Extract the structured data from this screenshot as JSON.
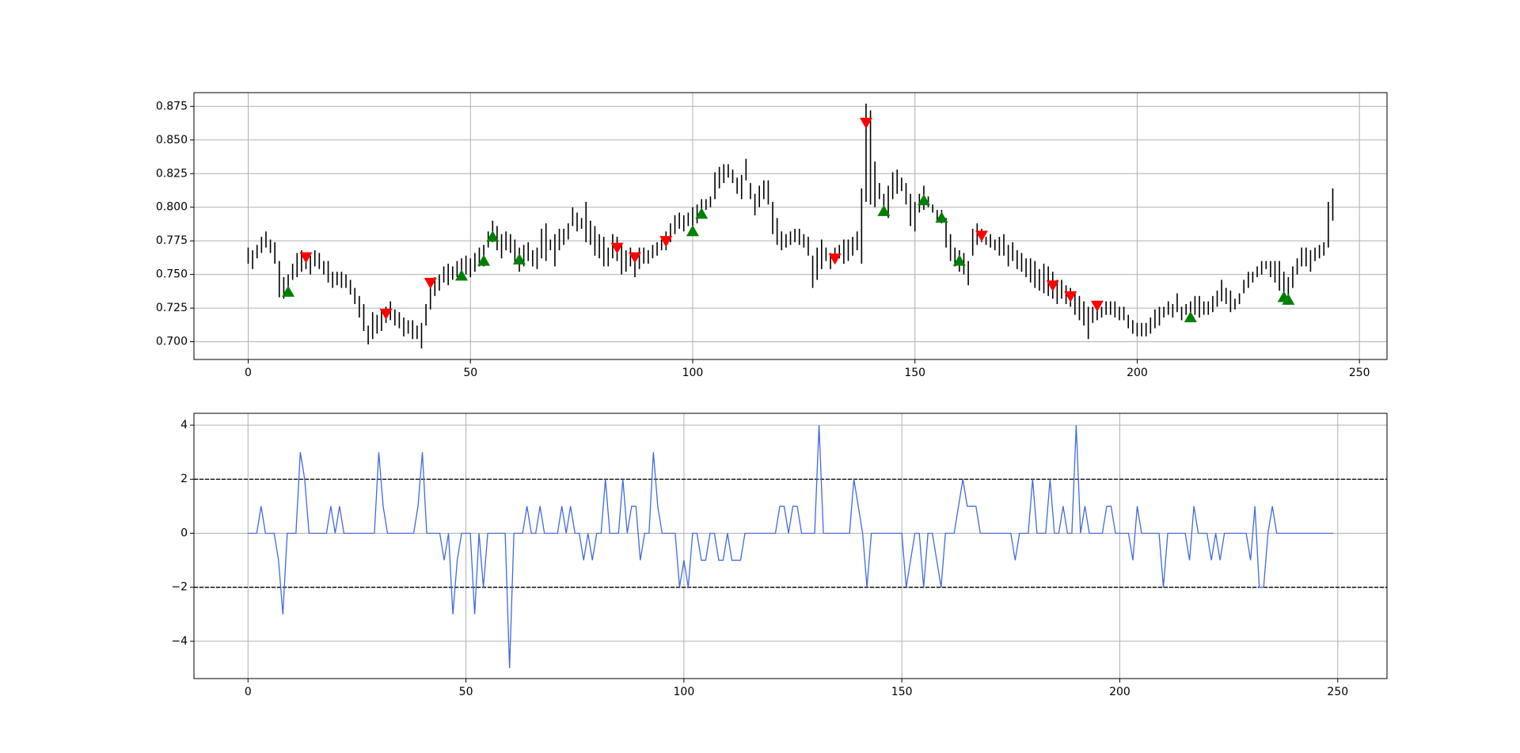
{
  "chart_data": [
    {
      "type": "ohlc",
      "color": "#000000",
      "grid": true,
      "xlim": [
        -12.2,
        256.2
      ],
      "ylim": [
        0.6868,
        0.8852
      ],
      "xticks": [
        0,
        50,
        100,
        150,
        200,
        250
      ],
      "yticks": [
        {
          "value": 0.7,
          "label": "0.700"
        },
        0.725,
        {
          "value": 0.75,
          "label": "0.750"
        },
        0.775,
        {
          "value": 0.8,
          "label": "0.800"
        },
        0.825,
        {
          "value": 0.85,
          "label": "0.850"
        },
        0.875
      ],
      "low": [
        0.758,
        0.754,
        0.762,
        0.766,
        0.77,
        0.766,
        0.758,
        0.733,
        0.732,
        0.734,
        0.746,
        0.748,
        0.752,
        0.754,
        0.75,
        0.756,
        0.754,
        0.75,
        0.744,
        0.74,
        0.742,
        0.74,
        0.74,
        0.735,
        0.728,
        0.718,
        0.708,
        0.698,
        0.702,
        0.706,
        0.708,
        0.714,
        0.716,
        0.712,
        0.71,
        0.704,
        0.706,
        0.702,
        0.702,
        0.695,
        0.712,
        0.724,
        0.734,
        0.738,
        0.744,
        0.742,
        0.746,
        0.748,
        0.746,
        0.75,
        0.748,
        0.752,
        0.756,
        0.756,
        0.77,
        0.774,
        0.768,
        0.762,
        0.768,
        0.766,
        0.758,
        0.752,
        0.756,
        0.76,
        0.756,
        0.754,
        0.762,
        0.76,
        0.768,
        0.756,
        0.768,
        0.772,
        0.776,
        0.786,
        0.782,
        0.784,
        0.774,
        0.772,
        0.764,
        0.762,
        0.756,
        0.756,
        0.762,
        0.76,
        0.75,
        0.752,
        0.756,
        0.748,
        0.754,
        0.758,
        0.758,
        0.762,
        0.764,
        0.768,
        0.768,
        0.774,
        0.78,
        0.784,
        0.782,
        0.786,
        0.786,
        0.788,
        0.792,
        0.798,
        0.8,
        0.806,
        0.814,
        0.818,
        0.822,
        0.818,
        0.81,
        0.806,
        0.82,
        0.806,
        0.794,
        0.8,
        0.806,
        0.802,
        0.78,
        0.772,
        0.768,
        0.77,
        0.772,
        0.774,
        0.772,
        0.77,
        0.764,
        0.74,
        0.746,
        0.754,
        0.76,
        0.754,
        0.758,
        0.762,
        0.758,
        0.76,
        0.764,
        0.768,
        0.758,
        0.804,
        0.802,
        0.8,
        0.806,
        0.798,
        0.792,
        0.806,
        0.81,
        0.812,
        0.802,
        0.786,
        0.782,
        0.796,
        0.798,
        0.8,
        0.796,
        0.79,
        0.788,
        0.77,
        0.76,
        0.756,
        0.752,
        0.75,
        0.742,
        0.764,
        0.772,
        0.774,
        0.772,
        0.77,
        0.768,
        0.764,
        0.764,
        0.756,
        0.76,
        0.754,
        0.752,
        0.748,
        0.744,
        0.74,
        0.738,
        0.736,
        0.734,
        0.732,
        0.728,
        0.732,
        0.728,
        0.726,
        0.72,
        0.716,
        0.712,
        0.702,
        0.714,
        0.716,
        0.718,
        0.72,
        0.72,
        0.718,
        0.716,
        0.716,
        0.71,
        0.706,
        0.704,
        0.704,
        0.704,
        0.706,
        0.71,
        0.712,
        0.718,
        0.72,
        0.718,
        0.722,
        0.716,
        0.72,
        0.722,
        0.72,
        0.718,
        0.72,
        0.72,
        0.722,
        0.726,
        0.73,
        0.728,
        0.722,
        0.724,
        0.728,
        0.736,
        0.74,
        0.744,
        0.748,
        0.75,
        0.754,
        0.748,
        0.744,
        0.738,
        0.736,
        0.734,
        0.74,
        0.75,
        0.756,
        0.756,
        0.752,
        0.76,
        0.762,
        0.764,
        0.77,
        0.79
      ],
      "high": [
        0.77,
        0.768,
        0.772,
        0.778,
        0.782,
        0.776,
        0.774,
        0.76,
        0.748,
        0.75,
        0.758,
        0.766,
        0.768,
        0.766,
        0.764,
        0.768,
        0.766,
        0.76,
        0.76,
        0.752,
        0.752,
        0.752,
        0.75,
        0.746,
        0.74,
        0.734,
        0.728,
        0.712,
        0.722,
        0.72,
        0.724,
        0.726,
        0.73,
        0.724,
        0.722,
        0.718,
        0.716,
        0.716,
        0.712,
        0.714,
        0.728,
        0.74,
        0.748,
        0.75,
        0.756,
        0.758,
        0.756,
        0.76,
        0.762,
        0.764,
        0.762,
        0.766,
        0.77,
        0.772,
        0.782,
        0.79,
        0.786,
        0.78,
        0.782,
        0.78,
        0.776,
        0.77,
        0.772,
        0.774,
        0.768,
        0.77,
        0.784,
        0.788,
        0.776,
        0.78,
        0.784,
        0.784,
        0.788,
        0.8,
        0.796,
        0.792,
        0.804,
        0.79,
        0.786,
        0.78,
        0.778,
        0.77,
        0.78,
        0.778,
        0.772,
        0.768,
        0.77,
        0.764,
        0.77,
        0.77,
        0.768,
        0.772,
        0.774,
        0.776,
        0.782,
        0.788,
        0.794,
        0.796,
        0.794,
        0.796,
        0.8,
        0.802,
        0.806,
        0.806,
        0.808,
        0.826,
        0.83,
        0.832,
        0.832,
        0.828,
        0.822,
        0.824,
        0.836,
        0.818,
        0.81,
        0.816,
        0.82,
        0.82,
        0.804,
        0.792,
        0.782,
        0.78,
        0.782,
        0.784,
        0.784,
        0.78,
        0.778,
        0.764,
        0.77,
        0.776,
        0.77,
        0.766,
        0.77,
        0.772,
        0.776,
        0.776,
        0.778,
        0.782,
        0.814,
        0.877,
        0.872,
        0.834,
        0.818,
        0.81,
        0.816,
        0.826,
        0.828,
        0.822,
        0.818,
        0.81,
        0.804,
        0.81,
        0.816,
        0.808,
        0.802,
        0.798,
        0.798,
        0.792,
        0.78,
        0.77,
        0.768,
        0.766,
        0.76,
        0.784,
        0.788,
        0.784,
        0.778,
        0.78,
        0.776,
        0.778,
        0.78,
        0.772,
        0.774,
        0.768,
        0.766,
        0.762,
        0.762,
        0.76,
        0.754,
        0.758,
        0.756,
        0.752,
        0.746,
        0.746,
        0.742,
        0.74,
        0.736,
        0.734,
        0.73,
        0.726,
        0.726,
        0.726,
        0.726,
        0.73,
        0.73,
        0.73,
        0.726,
        0.726,
        0.72,
        0.716,
        0.714,
        0.714,
        0.714,
        0.718,
        0.724,
        0.726,
        0.726,
        0.73,
        0.728,
        0.736,
        0.726,
        0.728,
        0.73,
        0.734,
        0.734,
        0.73,
        0.73,
        0.734,
        0.738,
        0.746,
        0.74,
        0.738,
        0.732,
        0.736,
        0.746,
        0.752,
        0.752,
        0.756,
        0.76,
        0.76,
        0.76,
        0.76,
        0.76,
        0.752,
        0.748,
        0.756,
        0.762,
        0.77,
        0.77,
        0.768,
        0.77,
        0.772,
        0.774,
        0.804,
        0.814
      ],
      "signals": [
        {
          "marker": "up",
          "color": "#008000",
          "x": [
            9,
            48,
            53,
            55,
            61,
            100,
            102,
            143,
            152,
            156,
            160,
            212,
            233,
            234
          ],
          "values": [
            0.737,
            0.749,
            0.76,
            0.778,
            0.761,
            0.782,
            0.795,
            0.797,
            0.805,
            0.792,
            0.76,
            0.718,
            0.733,
            0.731
          ]
        },
        {
          "marker": "down",
          "color": "#ff0000",
          "x": [
            13,
            31,
            41,
            83,
            87,
            94,
            132,
            139,
            165,
            181,
            185,
            191
          ],
          "values": [
            0.763,
            0.721,
            0.744,
            0.77,
            0.763,
            0.775,
            0.762,
            0.863,
            0.779,
            0.742,
            0.734,
            0.727
          ]
        }
      ]
    },
    {
      "type": "line",
      "color": "#4169e1",
      "grid": true,
      "xlim": [
        -12.4,
        261.3
      ],
      "ylim": [
        -5.38,
        4.44
      ],
      "xticks": [
        0,
        50,
        100,
        150,
        200,
        250
      ],
      "yticks": [
        {
          "value": -4,
          "label": "−4"
        },
        {
          "value": -2,
          "label": "−2"
        },
        0,
        2,
        4
      ],
      "hlines": [
        2,
        -2
      ],
      "hline_color": "#000000",
      "values": [
        0,
        0,
        0,
        1,
        0,
        0,
        0,
        -1,
        -3,
        0,
        0,
        0,
        3,
        2,
        0,
        0,
        0,
        0,
        0,
        1,
        0,
        1,
        0,
        0,
        0,
        0,
        0,
        0,
        0,
        0,
        3,
        1,
        0,
        0,
        0,
        0,
        0,
        0,
        0,
        1,
        3,
        0,
        0,
        0,
        0,
        -1,
        0,
        -3,
        -1,
        0,
        0,
        0,
        -3,
        0,
        -2,
        0,
        0,
        0,
        0,
        0,
        -5,
        0,
        0,
        0,
        1,
        0,
        0,
        1,
        0,
        0,
        0,
        0,
        1,
        0,
        1,
        0,
        0,
        -1,
        0,
        -1,
        0,
        0,
        2,
        0,
        0,
        0,
        2,
        0,
        1,
        1,
        -1,
        0,
        0,
        3,
        1,
        0,
        0,
        0,
        0,
        -2,
        -1,
        -2,
        0,
        0,
        -1,
        -1,
        0,
        0,
        -1,
        -1,
        0,
        -1,
        -1,
        -1,
        0,
        0,
        0,
        0,
        0,
        0,
        0,
        0,
        1,
        1,
        0,
        1,
        1,
        0,
        0,
        0,
        0,
        4,
        0,
        0,
        0,
        0,
        0,
        0,
        0,
        2,
        1,
        0,
        -2,
        0,
        0,
        0,
        0,
        0,
        0,
        0,
        0,
        -2,
        -1,
        0,
        0,
        -2,
        0,
        0,
        -1,
        -2,
        0,
        0,
        0,
        1,
        2,
        1,
        1,
        1,
        0,
        0,
        0,
        0,
        0,
        0,
        0,
        0,
        -1,
        0,
        0,
        0,
        2,
        0,
        0,
        0,
        2,
        0,
        0,
        1,
        0,
        0,
        4,
        0,
        1,
        0,
        0,
        0,
        0,
        1,
        1,
        0,
        0,
        0,
        0,
        -1,
        1,
        0,
        0,
        0,
        0,
        0,
        -2,
        0,
        0,
        0,
        0,
        0,
        -1,
        1,
        0,
        0,
        0,
        -1,
        0,
        -1,
        0,
        0,
        0,
        0,
        0,
        0,
        -1,
        1,
        -2,
        -2,
        0,
        1,
        0,
        0,
        0,
        0,
        0,
        0,
        0,
        0,
        0,
        0,
        0,
        0,
        0,
        0
      ]
    }
  ]
}
